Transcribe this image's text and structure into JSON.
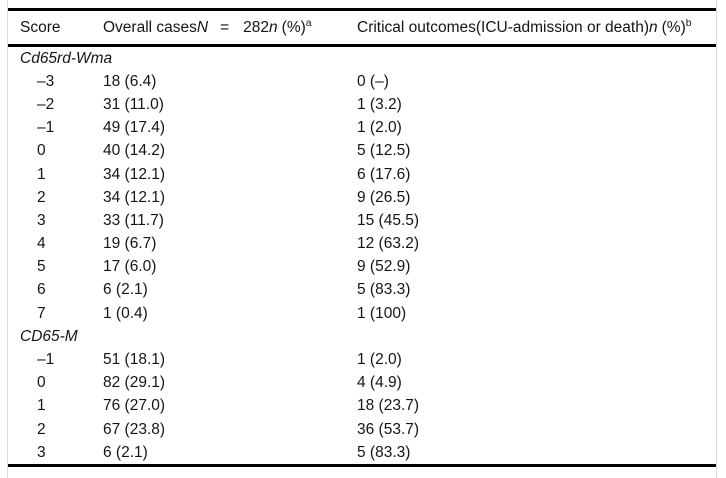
{
  "table": {
    "header": {
      "score": "Score",
      "overall": {
        "label": "Overall cases",
        "total_symbol": "N",
        "equals": "=",
        "total_value": "282",
        "count_symbol": "n",
        "percent": "(%)",
        "footnote_marker": "a"
      },
      "critical": {
        "label": "Critical outcomes(ICU-admission or death)",
        "count_symbol": "n",
        "percent": "(%)",
        "footnote_marker": "b"
      }
    },
    "sections": [
      {
        "title": "Cd65rd-Wma",
        "rows": [
          {
            "score": "–3",
            "overall": "18 (6.4)",
            "critical": "0 (–)"
          },
          {
            "score": "–2",
            "overall": "31 (11.0)",
            "critical": "1 (3.2)"
          },
          {
            "score": "–1",
            "overall": "49 (17.4)",
            "critical": "1 (2.0)"
          },
          {
            "score": "0",
            "overall": "40 (14.2)",
            "critical": "5 (12.5)"
          },
          {
            "score": "1",
            "overall": "34 (12.1)",
            "critical": "6 (17.6)"
          },
          {
            "score": "2",
            "overall": "34 (12.1)",
            "critical": "9 (26.5)"
          },
          {
            "score": "3",
            "overall": "33 (11.7)",
            "critical": "15 (45.5)"
          },
          {
            "score": "4",
            "overall": "19 (6.7)",
            "critical": "12 (63.2)"
          },
          {
            "score": "5",
            "overall": "17 (6.0)",
            "critical": "9 (52.9)"
          },
          {
            "score": "6",
            "overall": "6 (2.1)",
            "critical": "5 (83.3)"
          },
          {
            "score": "7",
            "overall": "1 (0.4)",
            "critical": "1 (100)"
          }
        ]
      },
      {
        "title": "CD65-M",
        "rows": [
          {
            "score": "–1",
            "overall": "51 (18.1)",
            "critical": "1 (2.0)"
          },
          {
            "score": "0",
            "overall": "82 (29.1)",
            "critical": "4 (4.9)"
          },
          {
            "score": "1",
            "overall": "76 (27.0)",
            "critical": "18 (23.7)"
          },
          {
            "score": "2",
            "overall": "67 (23.8)",
            "critical": "36 (53.7)"
          },
          {
            "score": "3",
            "overall": "6 (2.1)",
            "critical": "5 (83.3)"
          }
        ]
      }
    ],
    "colors": {
      "rule": "#000000",
      "frame_border": "#dcdcdc",
      "text": "#151515",
      "background": "#ffffff"
    }
  }
}
